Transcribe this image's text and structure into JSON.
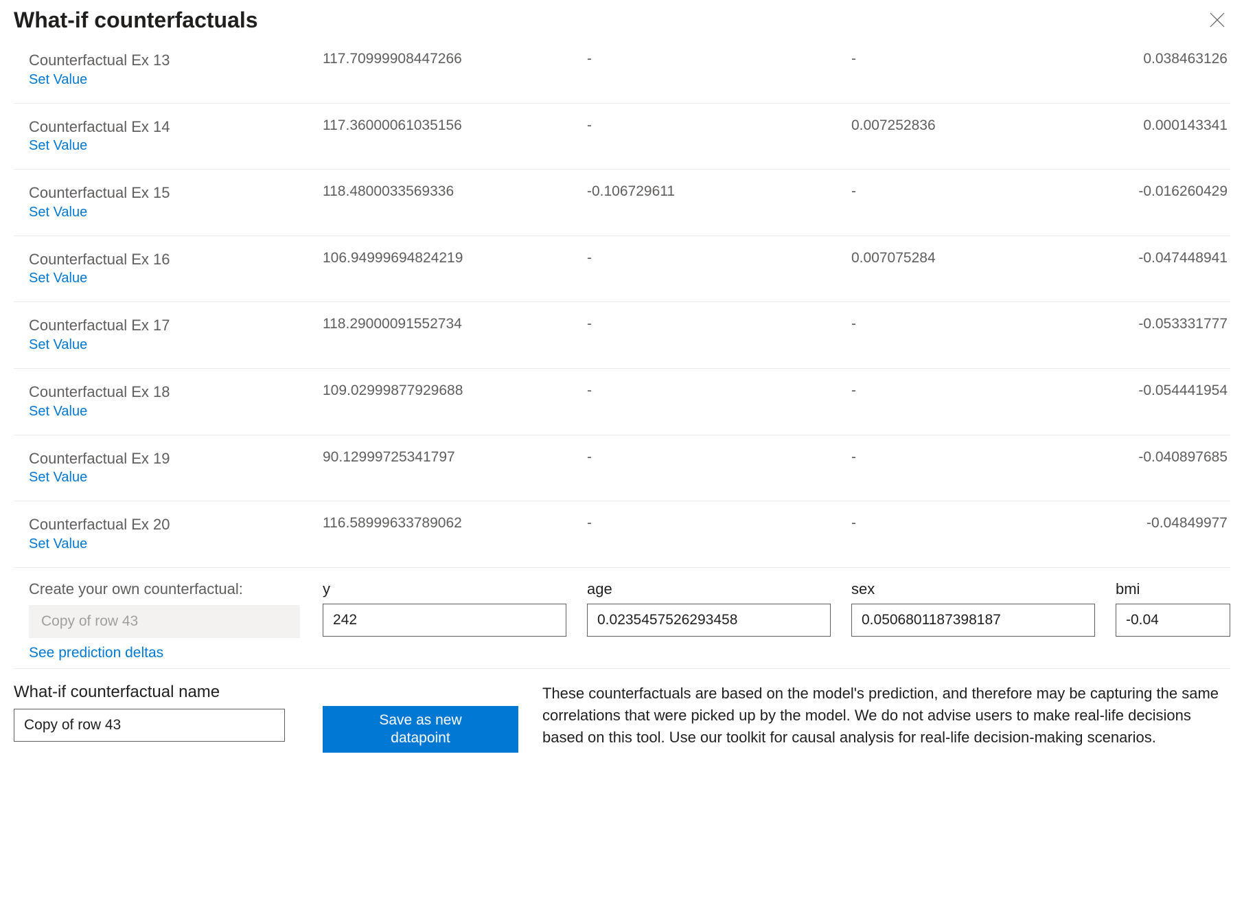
{
  "title": "What-if counterfactuals",
  "set_value_label": "Set Value",
  "rows": [
    {
      "name": "Counterfactual Ex 13",
      "c1": "117.70999908447266",
      "c2": "-",
      "c3": "-",
      "c4": "0.038463126"
    },
    {
      "name": "Counterfactual Ex 14",
      "c1": "117.36000061035156",
      "c2": "-",
      "c3": "0.007252836",
      "c4": "0.000143341"
    },
    {
      "name": "Counterfactual Ex 15",
      "c1": "118.4800033569336",
      "c2": "-0.106729611",
      "c3": "-",
      "c4": "-0.016260429"
    },
    {
      "name": "Counterfactual Ex 16",
      "c1": "106.94999694824219",
      "c2": "-",
      "c3": "0.007075284",
      "c4": "-0.047448941"
    },
    {
      "name": "Counterfactual Ex 17",
      "c1": "118.29000091552734",
      "c2": "-",
      "c3": "-",
      "c4": "-0.053331777"
    },
    {
      "name": "Counterfactual Ex 18",
      "c1": "109.02999877929688",
      "c2": "-",
      "c3": "-",
      "c4": "-0.054441954"
    },
    {
      "name": "Counterfactual Ex 19",
      "c1": "90.12999725341797",
      "c2": "-",
      "c3": "-",
      "c4": "-0.040897685"
    },
    {
      "name": "Counterfactual Ex 20",
      "c1": "116.58999633789062",
      "c2": "-",
      "c3": "-",
      "c4": "-0.04849977"
    }
  ],
  "create": {
    "label": "Create your own counterfactual:",
    "name_value": "Copy of row 43",
    "prediction_deltas_label": "See prediction deltas",
    "fields": {
      "y": {
        "label": "y",
        "value": "242"
      },
      "age": {
        "label": "age",
        "value": "0.0235457526293458"
      },
      "sex": {
        "label": "sex",
        "value": "0.0506801187398187"
      },
      "bmi": {
        "label": "bmi",
        "value": "-0.04"
      }
    }
  },
  "bottom": {
    "name_label": "What-if counterfactual name",
    "name_value": "Copy of row 43",
    "save_button": "Save as new\ndatapoint",
    "disclaimer": "These counterfactuals are based on the model's prediction, and therefore may be capturing the same correlations that were picked up by the model. We do not advise users to make real-life decisions based on this tool. Use our toolkit for causal analysis for real-life decision-making scenarios."
  }
}
